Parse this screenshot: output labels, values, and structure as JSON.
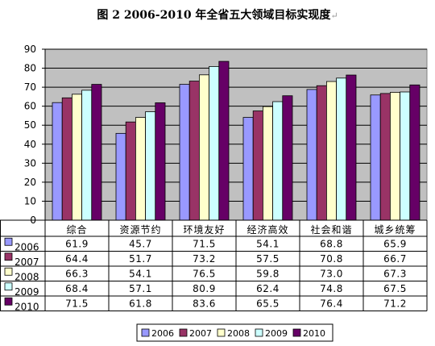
{
  "title": "图 2   2006-2010 年全省五大领域目标实现度",
  "title_mark": "↵",
  "chart_data": {
    "type": "bar",
    "categories": [
      "综合",
      "资源节约",
      "环境友好",
      "经济高效",
      "社会和谐",
      "城乡统筹"
    ],
    "series": [
      {
        "name": "2006",
        "color": "#9999ff",
        "values": [
          61.9,
          45.7,
          71.5,
          54.1,
          68.8,
          65.9
        ],
        "labels": [
          "61.9",
          "45.7",
          "71.5",
          "54.1",
          "68.8",
          "65.9"
        ]
      },
      {
        "name": "2007",
        "color": "#993366",
        "values": [
          64.4,
          51.7,
          73.2,
          57.5,
          70.8,
          66.7
        ],
        "labels": [
          "64.4",
          "51.7",
          "73.2",
          "57.5",
          "70.8",
          "66.7"
        ]
      },
      {
        "name": "2008",
        "color": "#ffffcc",
        "values": [
          66.3,
          54.1,
          76.5,
          59.8,
          73.0,
          67.3
        ],
        "labels": [
          "66.3",
          "54.1",
          "76.5",
          "59.8",
          "73.0",
          "67.3"
        ]
      },
      {
        "name": "2009",
        "color": "#ccffff",
        "values": [
          68.4,
          57.1,
          80.9,
          62.4,
          74.8,
          67.5
        ],
        "labels": [
          "68.4",
          "57.1",
          "80.9",
          "62.4",
          "74.8",
          "67.5"
        ]
      },
      {
        "name": "2010",
        "color": "#660066",
        "values": [
          71.5,
          61.8,
          83.6,
          65.5,
          76.4,
          71.2
        ],
        "labels": [
          "71.5",
          "61.8",
          "83.6",
          "65.5",
          "76.4",
          "71.2"
        ]
      }
    ],
    "y_ticks": [
      "0",
      "10",
      "20",
      "30",
      "40",
      "50",
      "60",
      "70",
      "80",
      "90"
    ],
    "ylim": [
      0,
      90
    ],
    "grid": true,
    "plot_background": "#c0c0c0",
    "legend_position": "bottom",
    "has_data_table": true
  }
}
